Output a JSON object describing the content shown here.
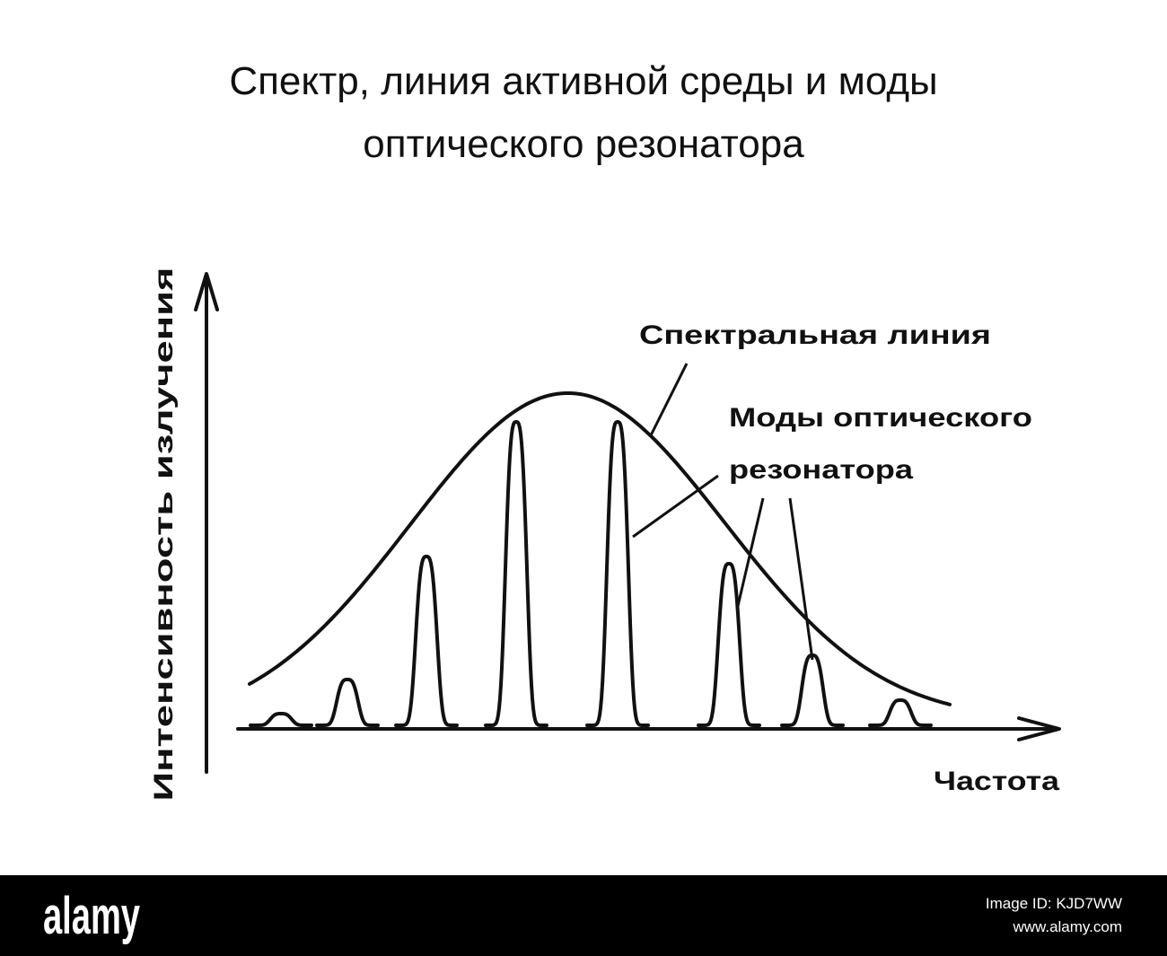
{
  "title_lines": [
    "Спектр, линия активной среды и моды",
    "оптического резонатора"
  ],
  "diagram": {
    "spectral_line_label": "Спектральная линия",
    "modes_label_lines": [
      "Моды оптического",
      "резонатора"
    ],
    "y_axis_label": "Интенсивность излучения",
    "x_axis_label": "Частота"
  },
  "watermark": {
    "brand": "alamy",
    "image_id": "Image ID: KJD7WW",
    "site": "www.alamy.com"
  }
}
